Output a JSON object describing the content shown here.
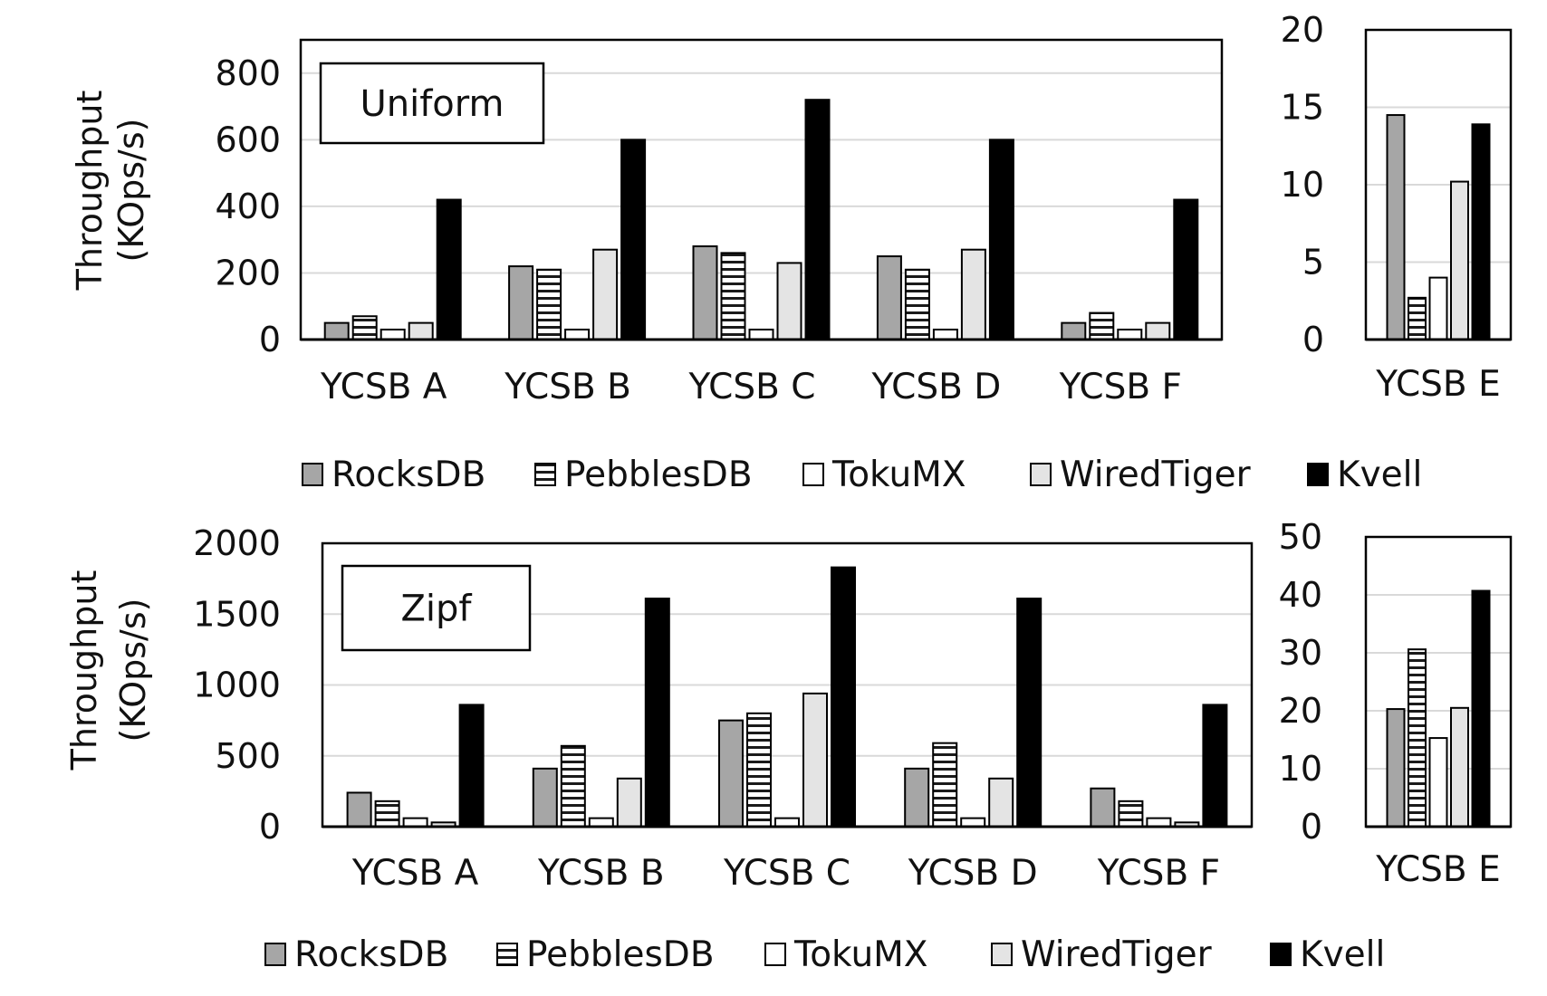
{
  "legend_labels": [
    "RocksDB",
    "PebblesDB",
    "TokuMX",
    "WiredTiger",
    "Kvell"
  ],
  "chart_data": [
    {
      "type": "bar",
      "panel": "top-main",
      "annotation": "Uniform",
      "ylabel": [
        "Throughput",
        "(KOps/s)"
      ],
      "ylim": [
        0,
        900
      ],
      "yticks": [
        0,
        200,
        400,
        600,
        800
      ],
      "grid": true,
      "legend": "below",
      "categories": [
        "YCSB A",
        "YCSB B",
        "YCSB C",
        "YCSB D",
        "YCSB F"
      ],
      "series": [
        {
          "name": "RocksDB",
          "values": [
            50,
            220,
            280,
            250,
            50
          ]
        },
        {
          "name": "PebblesDB",
          "values": [
            70,
            210,
            260,
            210,
            80
          ]
        },
        {
          "name": "TokuMX",
          "values": [
            30,
            30,
            30,
            30,
            30
          ]
        },
        {
          "name": "WiredTiger",
          "values": [
            50,
            270,
            230,
            270,
            50
          ]
        },
        {
          "name": "Kvell",
          "values": [
            420,
            600,
            720,
            600,
            420
          ]
        }
      ]
    },
    {
      "type": "bar",
      "panel": "top-side",
      "ylim": [
        0,
        20
      ],
      "yticks": [
        0,
        5,
        10,
        15,
        20
      ],
      "grid": true,
      "categories": [
        "YCSB E"
      ],
      "series": [
        {
          "name": "RocksDB",
          "values": [
            14.5
          ]
        },
        {
          "name": "PebblesDB",
          "values": [
            2.7
          ]
        },
        {
          "name": "TokuMX",
          "values": [
            4
          ]
        },
        {
          "name": "WiredTiger",
          "values": [
            10.2
          ]
        },
        {
          "name": "Kvell",
          "values": [
            13.9
          ]
        }
      ]
    },
    {
      "type": "bar",
      "panel": "bottom-main",
      "annotation": "Zipf",
      "ylabel": [
        "Throughput",
        "(KOps/s)"
      ],
      "ylim": [
        0,
        2000
      ],
      "yticks": [
        0,
        500,
        1000,
        1500,
        2000
      ],
      "grid": true,
      "legend": "below",
      "categories": [
        "YCSB A",
        "YCSB B",
        "YCSB C",
        "YCSB D",
        "YCSB F"
      ],
      "series": [
        {
          "name": "RocksDB",
          "values": [
            240,
            410,
            750,
            410,
            270
          ]
        },
        {
          "name": "PebblesDB",
          "values": [
            180,
            570,
            800,
            590,
            180
          ]
        },
        {
          "name": "TokuMX",
          "values": [
            60,
            60,
            60,
            60,
            60
          ]
        },
        {
          "name": "WiredTiger",
          "values": [
            30,
            340,
            940,
            340,
            30
          ]
        },
        {
          "name": "Kvell",
          "values": [
            860,
            1610,
            1830,
            1610,
            860
          ]
        }
      ]
    },
    {
      "type": "bar",
      "panel": "bottom-side",
      "ylim": [
        0,
        50
      ],
      "yticks": [
        0,
        10,
        20,
        30,
        40,
        50
      ],
      "grid": true,
      "categories": [
        "YCSB E"
      ],
      "series": [
        {
          "name": "RocksDB",
          "values": [
            20.3
          ]
        },
        {
          "name": "PebblesDB",
          "values": [
            30.6
          ]
        },
        {
          "name": "TokuMX",
          "values": [
            15.3
          ]
        },
        {
          "name": "WiredTiger",
          "values": [
            20.5
          ]
        },
        {
          "name": "Kvell",
          "values": [
            40.7
          ]
        }
      ]
    }
  ],
  "colors": {
    "RocksDB": "#a6a6a6",
    "PebblesDB": "hatch",
    "TokuMX": "#ffffff",
    "WiredTiger": "#e4e4e4",
    "Kvell": "#000000",
    "grid": "#d9d9d9",
    "axis": "#000000"
  }
}
